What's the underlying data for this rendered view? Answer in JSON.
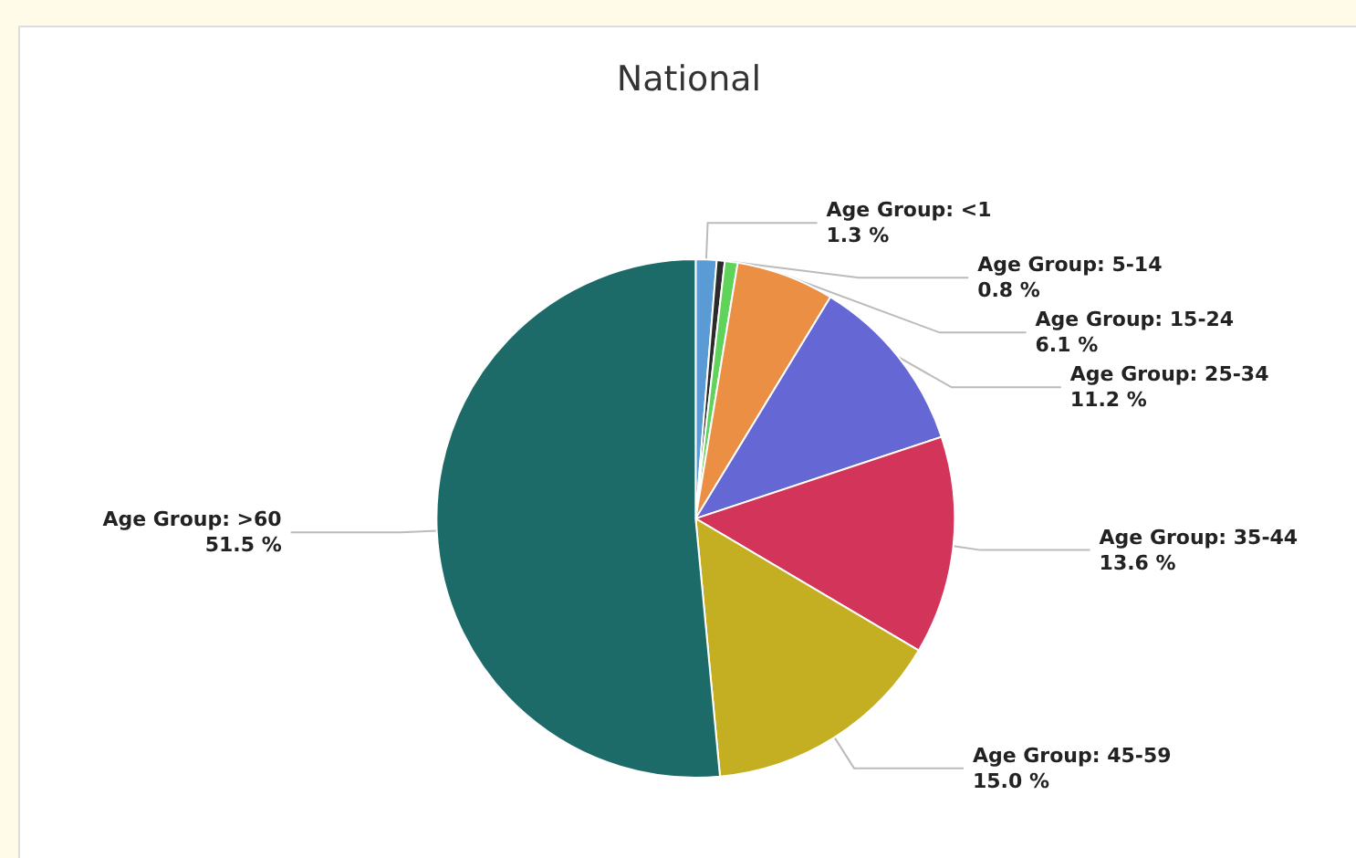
{
  "chart_data": {
    "type": "pie",
    "title": "National",
    "categories": [
      "Age Group: <1",
      null,
      "Age Group: 5-14",
      "Age Group: 15-24",
      "Age Group: 25-34",
      "Age Group: 35-44",
      "Age Group: 45-59",
      "Age Group: >60"
    ],
    "values": [
      1.3,
      0.5,
      0.8,
      6.1,
      11.2,
      13.6,
      15.0,
      51.5
    ],
    "value_labels": [
      "1.3 %",
      null,
      "0.8 %",
      "6.1 %",
      "11.2 %",
      "13.6 %",
      "15.0 %",
      "51.5 %"
    ],
    "colors": [
      "#5b9bd5",
      "#2b2b2b",
      "#5fd35a",
      "#eb8f45",
      "#6467d4",
      "#d3345a",
      "#c4ae22",
      "#1d6b69"
    ],
    "legend": false
  }
}
